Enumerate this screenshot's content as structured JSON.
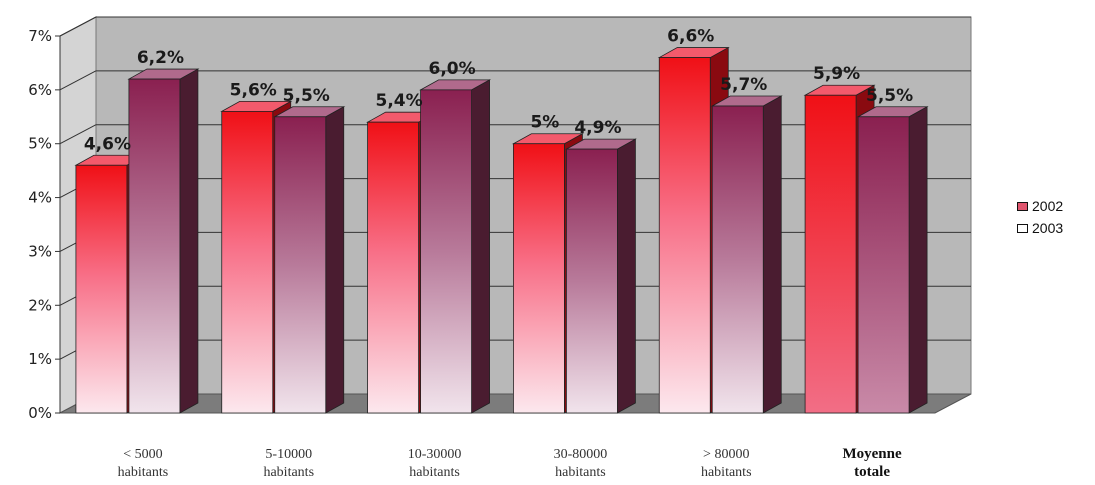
{
  "chart_data": {
    "type": "bar",
    "title": "",
    "xlabel": "",
    "ylabel": "",
    "ylim": [
      0,
      7
    ],
    "y_ticks": [
      "0%",
      "1%",
      "2%",
      "3%",
      "4%",
      "5%",
      "6%",
      "7%"
    ],
    "grid": true,
    "legend_position": "right",
    "categories": [
      {
        "lines": [
          "< 5000",
          "habitants"
        ],
        "bold": false
      },
      {
        "lines": [
          "5-10000",
          "habitants"
        ],
        "bold": false
      },
      {
        "lines": [
          "10-30000",
          "habitants"
        ],
        "bold": false
      },
      {
        "lines": [
          "30-80000",
          "habitants"
        ],
        "bold": false
      },
      {
        "lines": [
          "> 80000",
          "habitants"
        ],
        "bold": false
      },
      {
        "lines": [
          "Moyenne",
          "totale"
        ],
        "bold": true
      }
    ],
    "series": [
      {
        "name": "2002",
        "values": [
          4.6,
          5.6,
          5.4,
          5.0,
          6.6,
          5.9
        ],
        "labels": [
          "4,6%",
          "5,6%",
          "5,4%",
          "5%",
          "6,6%",
          "5,9%"
        ],
        "color": "#e8141a",
        "swatch": "#e0556e"
      },
      {
        "name": "2003",
        "values": [
          6.2,
          5.5,
          6.0,
          4.9,
          5.7,
          5.5
        ],
        "labels": [
          "6,2%",
          "5,5%",
          "6,0%",
          "4,9%",
          "5,7%",
          "5,5%"
        ],
        "color": "#8b2550",
        "swatch": "#ffffff"
      }
    ]
  }
}
